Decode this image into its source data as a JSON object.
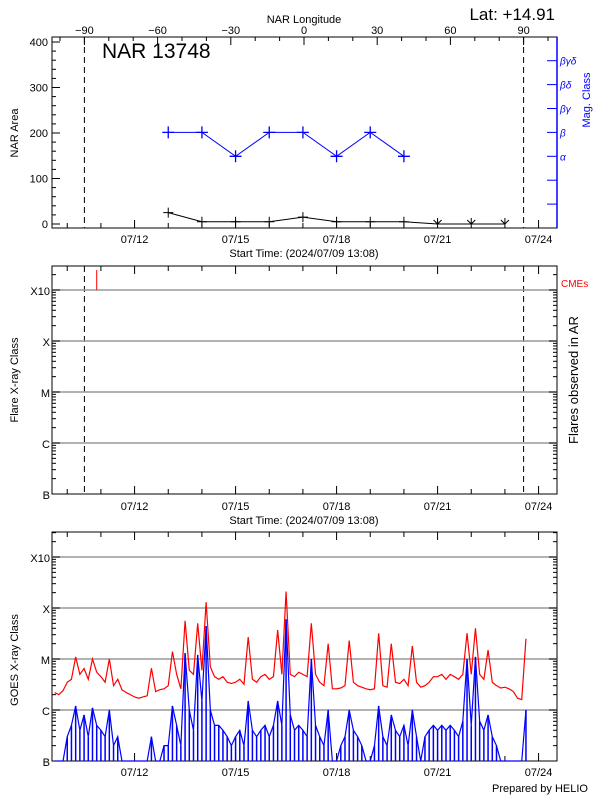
{
  "header": {
    "latitude": "Lat: +14.91",
    "region_title": "NAR 13748",
    "credit": "Prepared by HELIO"
  },
  "colors": {
    "area": "#000000",
    "mag_class": "#0000ff",
    "goes_long": "#ff0000",
    "goes_short": "#0000ff",
    "cme": "#ff0000",
    "grid": "#999999"
  },
  "chart_data": [
    {
      "type": "line",
      "title": "NAR 13748",
      "xlabel": "Start Time: (2024/07/09 13:08)",
      "xlim": [
        "2024-07-09T13:08",
        "2024-07-24T13:08"
      ],
      "x_tick_labels": [
        {
          "t": "2024-07-12T00:00",
          "label": "07/12"
        },
        {
          "t": "2024-07-15T00:00",
          "label": "07/15"
        },
        {
          "t": "2024-07-18T00:00",
          "label": "07/18"
        },
        {
          "t": "2024-07-21T00:00",
          "label": "07/21"
        },
        {
          "t": "2024-07-24T00:00",
          "label": "07/24"
        }
      ],
      "top_axis": {
        "label": "NAR Longitude",
        "ticks": [
          -90,
          -60,
          -30,
          0,
          30,
          60,
          90
        ],
        "tick_labels": [
          "−90",
          "−60",
          "−30",
          "0",
          "30",
          "60",
          "90"
        ],
        "limb_lines_at": [
          -90,
          90
        ]
      },
      "ylabel": "NAR Area",
      "ylim": [
        0,
        400
      ],
      "y_ticks": [
        0,
        100,
        200,
        300,
        400
      ],
      "y_tick_labels": [
        "0",
        "100",
        "200",
        "300",
        "400"
      ],
      "right_axis": {
        "label": "Mag. Class",
        "categories": [
          "",
          "",
          "",
          "α",
          "β",
          "βγ",
          "βδ",
          "βγδ"
        ]
      },
      "series": [
        {
          "key": "area",
          "x": [
            "2024-07-13T00:00",
            "2024-07-14T00:00",
            "2024-07-15T00:00",
            "2024-07-16T00:00",
            "2024-07-17T00:00",
            "2024-07-18T00:00",
            "2024-07-19T00:00",
            "2024-07-20T00:00",
            "2024-07-21T00:00",
            "2024-07-22T00:00",
            "2024-07-23T00:00"
          ],
          "values": [
            25,
            5,
            5,
            5,
            15,
            5,
            5,
            5,
            0,
            0,
            0
          ]
        },
        {
          "key": "mag_class",
          "x": [
            "2024-07-13T00:00",
            "2024-07-14T00:00",
            "2024-07-15T00:00",
            "2024-07-16T00:00",
            "2024-07-17T00:00",
            "2024-07-18T00:00",
            "2024-07-19T00:00",
            "2024-07-20T00:00"
          ],
          "values": [
            "β",
            "β",
            "α",
            "β",
            "β",
            "α",
            "β",
            "α"
          ]
        }
      ]
    },
    {
      "type": "scatter",
      "xlabel": "Start Time: (2024/07/09 13:08)",
      "ylabel": "Flare X-ray Class",
      "right_label": "Flares observed in AR",
      "y_scale": "log",
      "ylim_classes": [
        "B",
        "X10+"
      ],
      "y_tick_labels": [
        "B",
        "C",
        "M",
        "X",
        "X10"
      ],
      "grid": true,
      "legend": {
        "label": "CMEs",
        "placement": "top-right"
      },
      "flares": [],
      "cmes": [
        "2024-07-10T21:00"
      ]
    },
    {
      "type": "line",
      "ylabel": "GOES X-ray Class",
      "y_scale": "log",
      "y_tick_labels": [
        "B",
        "C",
        "M",
        "X",
        "X10"
      ],
      "grid": true,
      "times": [
        "2024-07-09T15:00",
        "2024-07-09T18:00",
        "2024-07-09T21:00",
        "2024-07-10T00:00",
        "2024-07-10T03:00",
        "2024-07-10T06:00",
        "2024-07-10T09:00",
        "2024-07-10T12:00",
        "2024-07-10T15:00",
        "2024-07-10T18:00",
        "2024-07-10T21:00",
        "2024-07-11T00:00",
        "2024-07-11T03:00",
        "2024-07-11T06:00",
        "2024-07-11T09:00",
        "2024-07-11T12:00",
        "2024-07-11T15:00",
        "2024-07-11T18:00",
        "2024-07-11T21:00",
        "2024-07-12T00:00",
        "2024-07-12T03:00",
        "2024-07-12T06:00",
        "2024-07-12T09:00",
        "2024-07-12T12:00",
        "2024-07-12T15:00",
        "2024-07-12T18:00",
        "2024-07-12T21:00",
        "2024-07-13T00:00",
        "2024-07-13T03:00",
        "2024-07-13T06:00",
        "2024-07-13T09:00",
        "2024-07-13T12:00",
        "2024-07-13T15:00",
        "2024-07-13T18:00",
        "2024-07-13T21:00",
        "2024-07-14T00:00",
        "2024-07-14T03:00",
        "2024-07-14T06:00",
        "2024-07-14T09:00",
        "2024-07-14T12:00",
        "2024-07-14T15:00",
        "2024-07-14T18:00",
        "2024-07-14T21:00",
        "2024-07-15T00:00",
        "2024-07-15T03:00",
        "2024-07-15T06:00",
        "2024-07-15T09:00",
        "2024-07-15T12:00",
        "2024-07-15T15:00",
        "2024-07-15T18:00",
        "2024-07-15T21:00",
        "2024-07-16T00:00",
        "2024-07-16T03:00",
        "2024-07-16T06:00",
        "2024-07-16T09:00",
        "2024-07-16T12:00",
        "2024-07-16T15:00",
        "2024-07-16T18:00",
        "2024-07-16T21:00",
        "2024-07-17T00:00",
        "2024-07-17T03:00",
        "2024-07-17T06:00",
        "2024-07-17T09:00",
        "2024-07-17T12:00",
        "2024-07-17T15:00",
        "2024-07-17T18:00",
        "2024-07-17T21:00",
        "2024-07-18T00:00",
        "2024-07-18T03:00",
        "2024-07-18T06:00",
        "2024-07-18T09:00",
        "2024-07-18T12:00",
        "2024-07-18T15:00",
        "2024-07-18T18:00",
        "2024-07-18T21:00",
        "2024-07-19T00:00",
        "2024-07-19T03:00",
        "2024-07-19T06:00",
        "2024-07-19T09:00",
        "2024-07-19T12:00",
        "2024-07-19T15:00",
        "2024-07-19T18:00",
        "2024-07-19T21:00",
        "2024-07-20T00:00",
        "2024-07-20T03:00",
        "2024-07-20T06:00",
        "2024-07-20T09:00",
        "2024-07-20T12:00",
        "2024-07-20T15:00",
        "2024-07-20T18:00",
        "2024-07-20T21:00",
        "2024-07-21T00:00",
        "2024-07-21T03:00",
        "2024-07-21T06:00",
        "2024-07-21T09:00",
        "2024-07-21T12:00",
        "2024-07-21T15:00",
        "2024-07-21T18:00",
        "2024-07-21T21:00",
        "2024-07-22T00:00",
        "2024-07-22T03:00",
        "2024-07-22T06:00",
        "2024-07-22T09:00",
        "2024-07-22T12:00",
        "2024-07-22T15:00",
        "2024-07-22T18:00",
        "2024-07-22T21:00",
        "2024-07-23T00:00",
        "2024-07-23T03:00",
        "2024-07-23T06:00",
        "2024-07-23T09:00",
        "2024-07-23T12:00",
        "2024-07-23T15:00"
      ],
      "series": [
        {
          "key": "goes_long",
          "values": [
            "C2.2",
            "C2.0",
            "C2.4",
            "C3.5",
            "C4.0",
            "M1.1",
            "C5.0",
            "C6.5",
            "C4.0",
            "M1.0",
            "C5.5",
            "C4.5",
            "C3.5",
            "M1.0",
            "C3.0",
            "C4.0",
            "C2.5",
            "C2.2",
            "C2.0",
            "C1.8",
            "C1.7",
            "C1.8",
            "C1.9",
            "C6.6",
            "C2.3",
            "C2.5",
            "C2.6",
            "C3.0",
            "M1.4",
            "C5.0",
            "C2.6",
            "M5.6",
            "C6.0",
            "C5.0",
            "M5.0",
            "C6.0",
            "X1.3",
            "C7.0",
            "C4.5",
            "C4.0",
            "C4.5",
            "C3.5",
            "C3.3",
            "C3.5",
            "C4.0",
            "C3.2",
            "M2.7",
            "C4.0",
            "C3.5",
            "C4.5",
            "C5.0",
            "C4.0",
            "C4.5",
            "M3.7",
            "C5.0",
            "X2.1",
            "C5.0",
            "C4.5",
            "C5.5",
            "C5.0",
            "C4.5",
            "M5.0",
            "C5.0",
            "C3.5",
            "C3.0",
            "M2.0",
            "C2.6",
            "C2.6",
            "C2.7",
            "C3.0",
            "M2.3",
            "C3.5",
            "C3.0",
            "C2.8",
            "C2.6",
            "C2.5",
            "C2.6",
            "M3.2",
            "C3.0",
            "C2.8",
            "M2.0",
            "C3.5",
            "C3.3",
            "C4.0",
            "C3.0",
            "M1.8",
            "C3.5",
            "C2.8",
            "C3.0",
            "C3.5",
            "C4.5",
            "C4.5",
            "C5.0",
            "C4.0",
            "C5.0",
            "C4.5",
            "C4.0",
            "C5.0",
            "M3.2",
            "C5.0",
            "M4.0",
            "C5.0",
            "C4.0",
            "M1.5",
            "C3.5",
            "C3.0",
            "C2.7",
            "C2.8",
            "C2.6",
            "C2.3",
            "C1.7",
            "C1.6",
            "M2.5"
          ]
        },
        {
          "key": "goes_short",
          "values": [
            "B1",
            "B1",
            "B1",
            "B3",
            "B5",
            "C1.2",
            "B4",
            "B8",
            "B3",
            "C1.1",
            "B5",
            "B4",
            "B3",
            "C1.0",
            "B2",
            "B3",
            "B1",
            "B1",
            "B1",
            "B1",
            "B1",
            "B1",
            "B1",
            "B3",
            "B1",
            "B1",
            "B2",
            "B2",
            "C1.2",
            "B5",
            "B2",
            "M1.3",
            "C1.0",
            "B4",
            "M1.2",
            "C1.5",
            "M4.4",
            "C1.0",
            "B5",
            "B5",
            "B4",
            "B3",
            "B2",
            "B3",
            "B4",
            "B2",
            "C1.5",
            "B4",
            "B3",
            "B4",
            "B5",
            "B3",
            "B5",
            "C1.5",
            "B5",
            "M6.0",
            "B8",
            "B4",
            "B5",
            "B4",
            "B3",
            "M1.0",
            "B5",
            "B3",
            "B2",
            "C1.0",
            "B1",
            "B1",
            "B2",
            "B3",
            "C1.0",
            "B4",
            "B3",
            "B2",
            "B1",
            "B1",
            "B2",
            "C1.2",
            "B3",
            "B2",
            "B8",
            "B4",
            "B3",
            "B5",
            "B2",
            "C1.0",
            "B3",
            "B1",
            "B3",
            "B4",
            "B5",
            "B4",
            "B5",
            "B4",
            "B5",
            "B4",
            "B3",
            "B6",
            "M1.0",
            "B5",
            "M1.1",
            "B6",
            "B4",
            "B8",
            "B3",
            "B2",
            "B1",
            "B1",
            "B1",
            "B1",
            "B1",
            "B1",
            "C1.0"
          ]
        }
      ]
    }
  ]
}
